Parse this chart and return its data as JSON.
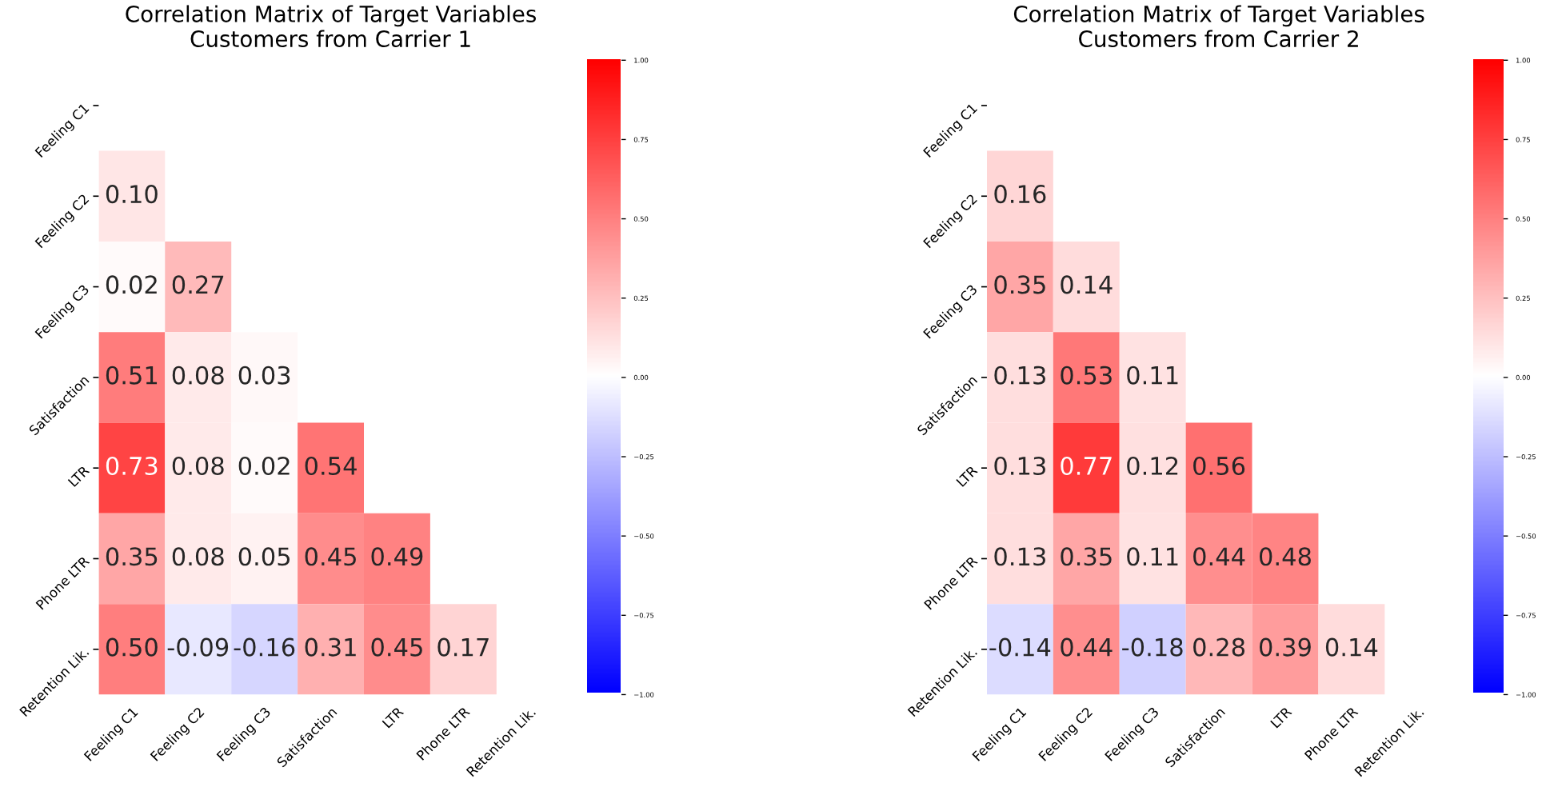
{
  "chart_data": [
    {
      "type": "heatmap",
      "title": "Correlation Matrix of Target Variables\nCustomers from Carrier 1",
      "categories": [
        "Feeling C1",
        "Feeling C2",
        "Feeling C3",
        "Satisfaction",
        "LTR",
        "Phone LTR",
        "Retention Lik."
      ],
      "y_categories": [
        "Feeling C1",
        "Feeling C2",
        "Feeling C3",
        "Satisfaction",
        "LTR",
        "Phone LTR",
        "Retention Lik."
      ],
      "cells": [
        [
          null,
          null,
          null,
          null,
          null,
          null,
          null
        ],
        [
          0.1,
          null,
          null,
          null,
          null,
          null,
          null
        ],
        [
          0.02,
          0.27,
          null,
          null,
          null,
          null,
          null
        ],
        [
          0.51,
          0.08,
          0.03,
          null,
          null,
          null,
          null
        ],
        [
          0.73,
          0.08,
          0.02,
          0.54,
          null,
          null,
          null
        ],
        [
          0.35,
          0.08,
          0.05,
          0.45,
          0.49,
          null,
          null
        ],
        [
          0.5,
          -0.09,
          -0.16,
          0.31,
          0.45,
          0.17,
          null
        ]
      ],
      "cell_labels": [
        [
          null,
          null,
          null,
          null,
          null,
          null,
          null
        ],
        [
          "0.10",
          null,
          null,
          null,
          null,
          null,
          null
        ],
        [
          "0.02",
          "0.27",
          null,
          null,
          null,
          null,
          null
        ],
        [
          "0.51",
          "0.08",
          "0.03",
          null,
          null,
          null,
          null
        ],
        [
          "0.73",
          "0.08",
          "0.02",
          "0.54",
          null,
          null,
          null
        ],
        [
          "0.35",
          "0.08",
          "0.05",
          "0.45",
          "0.49",
          null,
          null
        ],
        [
          "0.50",
          "-0.09",
          "-0.16",
          "0.31",
          "0.45",
          "0.17",
          null
        ]
      ],
      "clim": [
        -1,
        1
      ],
      "cticks": [
        {
          "value": -1,
          "label": "−1.00"
        },
        {
          "value": -0.75,
          "label": "−0.75"
        },
        {
          "value": -0.5,
          "label": "−0.50"
        },
        {
          "value": -0.25,
          "label": "−0.25"
        },
        {
          "value": 0,
          "label": "0.00"
        },
        {
          "value": 0.25,
          "label": "0.25"
        },
        {
          "value": 0.5,
          "label": "0.50"
        },
        {
          "value": 0.75,
          "label": "0.75"
        },
        {
          "value": 1,
          "label": "1.00"
        }
      ]
    },
    {
      "type": "heatmap",
      "title": "Correlation Matrix of Target Variables\nCustomers from Carrier 2",
      "categories": [
        "Feeling C1",
        "Feeling C2",
        "Feeling C3",
        "Satisfaction",
        "LTR",
        "Phone LTR",
        "Retention Lik."
      ],
      "y_categories": [
        "Feeling C1",
        "Feeling C2",
        "Feeling C3",
        "Satisfaction",
        "LTR",
        "Phone LTR",
        "Retention Lik."
      ],
      "cells": [
        [
          null,
          null,
          null,
          null,
          null,
          null,
          null
        ],
        [
          0.16,
          null,
          null,
          null,
          null,
          null,
          null
        ],
        [
          0.35,
          0.14,
          null,
          null,
          null,
          null,
          null
        ],
        [
          0.13,
          0.53,
          0.11,
          null,
          null,
          null,
          null
        ],
        [
          0.13,
          0.77,
          0.12,
          0.56,
          null,
          null,
          null
        ],
        [
          0.13,
          0.35,
          0.11,
          0.44,
          0.48,
          null,
          null
        ],
        [
          -0.14,
          0.44,
          -0.18,
          0.28,
          0.39,
          0.14,
          null
        ]
      ],
      "cell_labels": [
        [
          null,
          null,
          null,
          null,
          null,
          null,
          null
        ],
        [
          "0.16",
          null,
          null,
          null,
          null,
          null,
          null
        ],
        [
          "0.35",
          "0.14",
          null,
          null,
          null,
          null,
          null
        ],
        [
          "0.13",
          "0.53",
          "0.11",
          null,
          null,
          null,
          null
        ],
        [
          "0.13",
          "0.77",
          "0.12",
          "0.56",
          null,
          null,
          null
        ],
        [
          "0.13",
          "0.35",
          "0.11",
          "0.44",
          "0.48",
          null,
          null
        ],
        [
          "-0.14",
          "0.44",
          "-0.18",
          "0.28",
          "0.39",
          "0.14",
          null
        ]
      ],
      "clim": [
        -1,
        1
      ],
      "cticks": [
        {
          "value": -1,
          "label": "−1.00"
        },
        {
          "value": -0.75,
          "label": "−0.75"
        },
        {
          "value": -0.5,
          "label": "−0.50"
        },
        {
          "value": -0.25,
          "label": "−0.25"
        },
        {
          "value": 0,
          "label": "0.00"
        },
        {
          "value": 0.25,
          "label": "0.25"
        },
        {
          "value": 0.5,
          "label": "0.50"
        },
        {
          "value": 0.75,
          "label": "0.75"
        },
        {
          "value": 1,
          "label": "1.00"
        }
      ]
    }
  ]
}
